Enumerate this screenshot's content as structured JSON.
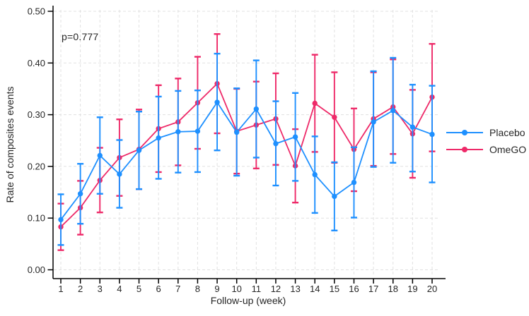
{
  "chart_data": {
    "type": "line",
    "xlabel": "Follow-up (week)",
    "ylabel": "Rate of composites events",
    "annotation": "p=0.777",
    "x": [
      1,
      2,
      3,
      4,
      5,
      6,
      7,
      8,
      9,
      10,
      11,
      12,
      13,
      14,
      15,
      16,
      17,
      18,
      19,
      20
    ],
    "xlim": [
      0.6,
      20.6
    ],
    "ylim": [
      0.0,
      0.5
    ],
    "yticks": [
      0.0,
      0.1,
      0.2,
      0.3,
      0.4,
      0.5
    ],
    "grid": "dashed horizontal and vertical",
    "legend_position": "right-outside",
    "error_bars": "vertical with caps, 95% CI",
    "series": [
      {
        "name": "Placebo",
        "color": "#1E90FF",
        "values": [
          0.097,
          0.147,
          0.221,
          0.185,
          0.231,
          0.255,
          0.267,
          0.268,
          0.324,
          0.266,
          0.311,
          0.244,
          0.257,
          0.184,
          0.142,
          0.169,
          0.286,
          0.308,
          0.276,
          0.262
        ],
        "ci_low": [
          0.048,
          0.089,
          0.147,
          0.12,
          0.156,
          0.176,
          0.188,
          0.189,
          0.231,
          0.182,
          0.217,
          0.163,
          0.172,
          0.11,
          0.076,
          0.101,
          0.199,
          0.207,
          0.19,
          0.169
        ],
        "ci_high": [
          0.146,
          0.205,
          0.295,
          0.251,
          0.306,
          0.335,
          0.346,
          0.347,
          0.418,
          0.351,
          0.405,
          0.326,
          0.342,
          0.258,
          0.208,
          0.237,
          0.384,
          0.41,
          0.358,
          0.356
        ]
      },
      {
        "name": "OmeGO",
        "color": "#EE2A69",
        "values": [
          0.083,
          0.12,
          0.173,
          0.217,
          0.233,
          0.273,
          0.286,
          0.323,
          0.36,
          0.268,
          0.28,
          0.292,
          0.201,
          0.322,
          0.295,
          0.233,
          0.292,
          0.315,
          0.263,
          0.334
        ],
        "ci_low": [
          0.038,
          0.068,
          0.111,
          0.143,
          0.156,
          0.189,
          0.202,
          0.234,
          0.264,
          0.186,
          0.196,
          0.203,
          0.13,
          0.228,
          0.207,
          0.152,
          0.201,
          0.224,
          0.178,
          0.229
        ],
        "ci_high": [
          0.128,
          0.172,
          0.236,
          0.291,
          0.31,
          0.357,
          0.37,
          0.412,
          0.456,
          0.35,
          0.364,
          0.38,
          0.272,
          0.416,
          0.382,
          0.312,
          0.382,
          0.407,
          0.348,
          0.437
        ]
      }
    ]
  }
}
